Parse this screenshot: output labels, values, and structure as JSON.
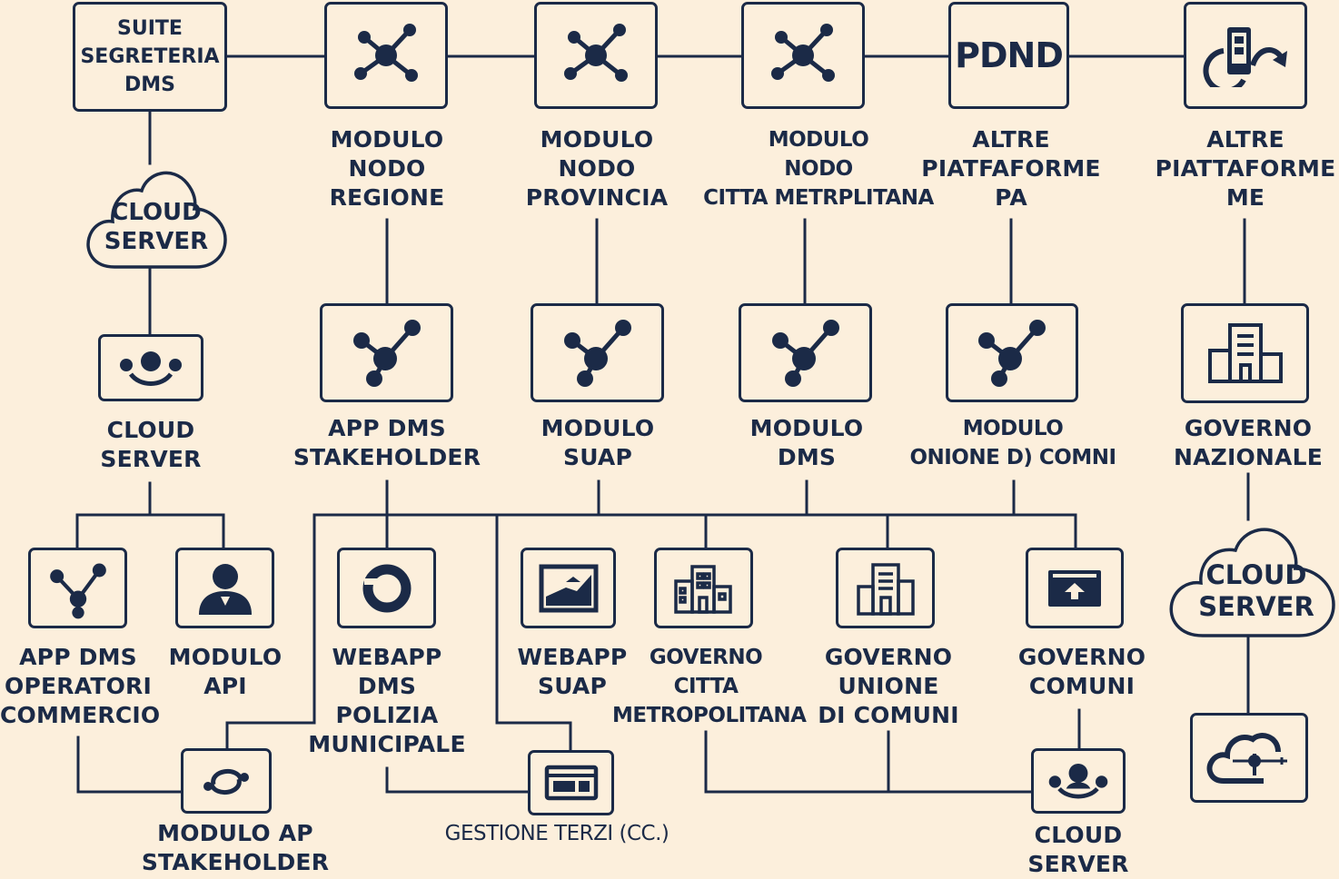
{
  "colors": {
    "ink": "#1b2a47",
    "background": "#fcefdc"
  },
  "top_row": {
    "suite": {
      "text": "SUITE\nSEGRETERIA\nDMS"
    },
    "regione": {
      "icon": "network-hub-icon",
      "label": "MODULO\nNODO\nREGIONE"
    },
    "provincia": {
      "icon": "network-hub-icon",
      "label": "MODULO\nNODO\nPROVINCIA"
    },
    "citta": {
      "icon": "network-hub-icon",
      "label": "MODULO\nNODO\nCITTA METRPLITANA"
    },
    "pdnd": {
      "text": "PDND",
      "label": "ALTRE\nPIATFAFORME\nPA"
    },
    "me": {
      "icon": "phone-sync-icon",
      "label": "ALTRE\nPIATTAFORME\nME"
    }
  },
  "cloud_top": {
    "text": "CLOUD\nSERVER"
  },
  "middle_row": {
    "cloud_server": {
      "icon": "users-group-icon",
      "label": "CLOUD\nSERVER"
    },
    "app_stakeholder": {
      "icon": "branch-nodes-icon",
      "label": "APP DMS\nSTAKEHOLDER"
    },
    "suap": {
      "icon": "branch-nodes-icon",
      "label": "MODULO\nSUAP"
    },
    "dms": {
      "icon": "branch-nodes-icon",
      "label": "MODULO\nDMS"
    },
    "unione": {
      "icon": "branch-nodes-icon",
      "label": "MODULO\nONIONE D) COMNI"
    },
    "governo_nazionale": {
      "icon": "building-icon",
      "label": "GOVERNO\nNAZIONALE"
    }
  },
  "bottom_row": {
    "operatori": {
      "icon": "branch-nodes-icon",
      "label": "APP DMS\nOPERATORI\nCOMMERCIO"
    },
    "modulo_api": {
      "icon": "user-icon",
      "label": "MODULO\nAPI"
    },
    "polizia": {
      "icon": "ring-icon",
      "label": "WEBAPP\nDMS\nPOLIZIA\nMUNICIPALE"
    },
    "webapp_suap": {
      "icon": "image-frame-icon",
      "label": "WEBAPP\nSUAP"
    },
    "gov_citta": {
      "icon": "city-buildings-icon",
      "label": "GOVERNO\nCITTA\nMETROPOLITANA"
    },
    "gov_unione": {
      "icon": "office-building-icon",
      "label": "GOVERNO\nUNIONE\nDI COMUNI"
    },
    "gov_comuni": {
      "icon": "upload-screen-icon",
      "label": "GOVERNO\nCOMUNI"
    }
  },
  "cloud_right": {
    "text": "CLOUD\nSERVER"
  },
  "base_row": {
    "modulo_ap": {
      "icon": "sync-arrows-icon",
      "label": "MODULO AP\nSTAKEHOLDER"
    },
    "gestione": {
      "icon": "browser-window-icon",
      "label": "GESTIONE TERZI (CC.)"
    },
    "cloud_server_small": {
      "icon": "users-group-icon",
      "label": "CLOUD\nSERVER"
    },
    "cloud_sync": {
      "icon": "cloud-connector-icon"
    }
  }
}
